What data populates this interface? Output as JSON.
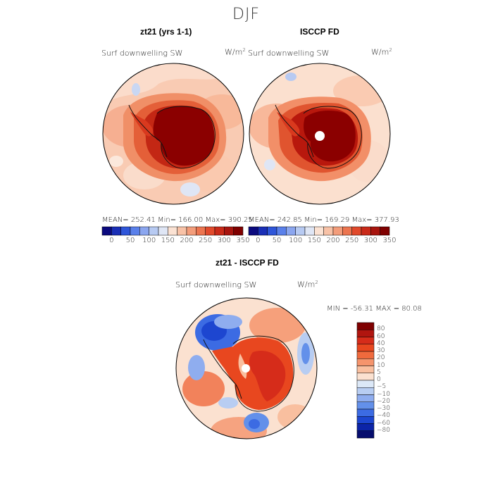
{
  "title": "DJF",
  "panels": [
    {
      "id": "model",
      "title": "zt21 (yrs 1-1)",
      "field": "Surf downwelling SW",
      "units_base": "W/m",
      "units_exp": "2",
      "stats": "MEAN= 252.41   Min= 166.00   Max= 390.25"
    },
    {
      "id": "obs",
      "title": "ISCCP FD",
      "field": "Surf downwelling SW",
      "units_base": "W/m",
      "units_exp": "2",
      "stats": "MEAN= 242.85   Min= 169.29   Max= 377.93"
    },
    {
      "id": "diff",
      "title": "zt21 - ISCCP FD",
      "field": "Surf downwelling SW",
      "units_base": "W/m",
      "units_exp": "2",
      "stats": "MIN = -56.31  MAX =  80.08"
    }
  ],
  "abs_colorbar": {
    "ticks": [
      "0",
      "50",
      "100",
      "150",
      "200",
      "250",
      "300",
      "350"
    ],
    "colors": [
      "#0b0a7e",
      "#1a2fb6",
      "#2f56d9",
      "#5a80ea",
      "#8ba6ef",
      "#b7caf2",
      "#dfe6f5",
      "#fbe2d3",
      "#f8c2a7",
      "#f39d7b",
      "#ec7550",
      "#e14a2c",
      "#c92a19",
      "#a8150f",
      "#7f0000"
    ]
  },
  "diff_colorbar": {
    "labels": [
      "80",
      "60",
      "40",
      "30",
      "20",
      "10",
      "5",
      "0",
      "−5",
      "−10",
      "−20",
      "−30",
      "−40",
      "−60",
      "−80"
    ],
    "colors": [
      "#7f0000",
      "#b0150f",
      "#d62c1a",
      "#e8471f",
      "#f06a3d",
      "#f5946c",
      "#f9bf9f",
      "#fbe1d0",
      "#dce8f7",
      "#b8cdf2",
      "#8fadef",
      "#6390ea",
      "#3c6be3",
      "#1d46d0",
      "#0c24a8",
      "#060d6e"
    ]
  }
}
